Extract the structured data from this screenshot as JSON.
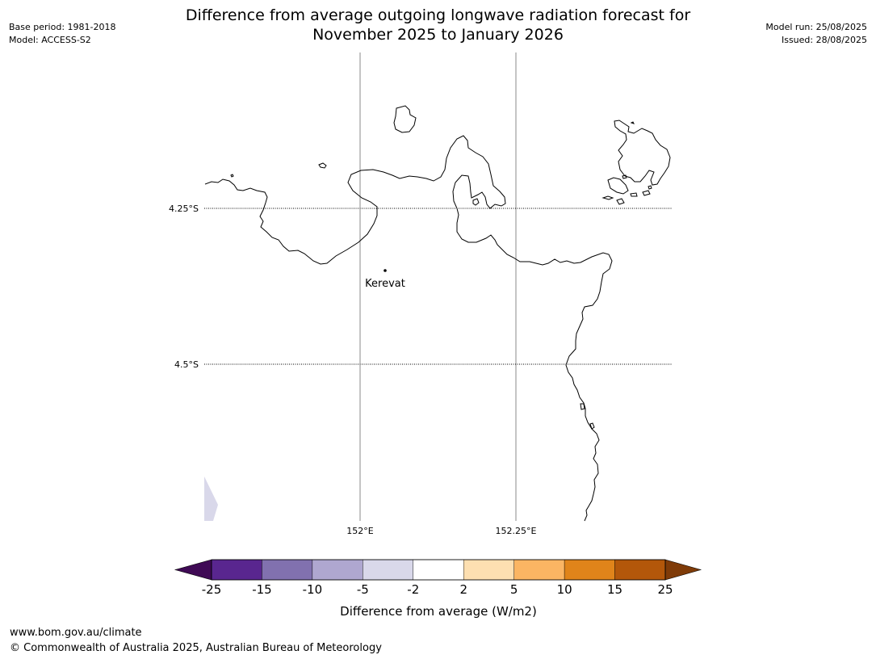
{
  "header": {
    "base_period": "Base period: 1981-2018",
    "model": "Model: ACCESS-S2",
    "model_run": "Model run: 25/08/2025",
    "issued": "Issued: 28/08/2025",
    "title_line1": "Difference from average outgoing longwave radiation forecast for",
    "title_line2": "November 2025 to January 2026"
  },
  "map": {
    "lat_labels": [
      "4.25°S",
      "4.5°S"
    ],
    "lon_labels": [
      "152°E",
      "152.25°E"
    ],
    "places": [
      {
        "name": "Kerevat"
      }
    ]
  },
  "colorbar": {
    "label": "Difference from average (W/m2)",
    "ticks": [
      "-25",
      "-15",
      "-10",
      "-5",
      "-2",
      "2",
      "5",
      "10",
      "15",
      "25"
    ],
    "colors": [
      "#3f0a55",
      "#59268f",
      "#8171af",
      "#afa7d0",
      "#d9d8ea",
      "#ffffff",
      "#fddfb1",
      "#fbb563",
      "#e0841a",
      "#b3570a",
      "#7f3b08"
    ]
  },
  "footer": {
    "url": "www.bom.gov.au/climate",
    "copyright": "© Commonwealth of Australia 2025, Australian Bureau of Meteorology"
  }
}
